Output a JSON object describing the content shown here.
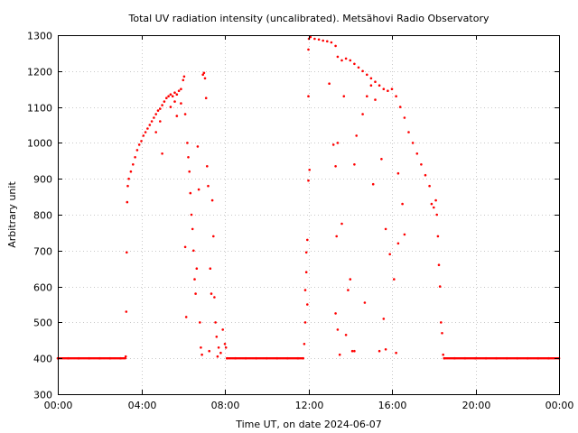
{
  "chart_data": {
    "type": "scatter",
    "title": "Total UV radiation intensity (uncalibrated). Metsähovi Radio Observatory",
    "xlabel": "Time UT, on date 2024-06-07",
    "ylabel": "Arbitrary unit",
    "xlim": [
      0,
      24
    ],
    "ylim": [
      300,
      1300
    ],
    "x_ticks": [
      {
        "value": 0,
        "label": "00:00"
      },
      {
        "value": 4,
        "label": "04:00"
      },
      {
        "value": 8,
        "label": "08:00"
      },
      {
        "value": 12,
        "label": "12:00"
      },
      {
        "value": 16,
        "label": "16:00"
      },
      {
        "value": 20,
        "label": "20:00"
      },
      {
        "value": 24,
        "label": "00:00"
      }
    ],
    "y_ticks": [
      300,
      400,
      500,
      600,
      700,
      800,
      900,
      1000,
      1100,
      1200,
      1300
    ],
    "grid": true,
    "marker_color": "#ff0000",
    "series": [
      {
        "points": [
          [
            0.0,
            400
          ],
          [
            0.5,
            400
          ],
          [
            1.0,
            400
          ],
          [
            1.5,
            400
          ],
          [
            2.0,
            400
          ],
          [
            2.5,
            400
          ],
          [
            3.0,
            400
          ],
          [
            3.25,
            405
          ],
          [
            3.28,
            530
          ],
          [
            3.3,
            695
          ],
          [
            3.32,
            835
          ],
          [
            3.35,
            880
          ],
          [
            3.4,
            900
          ],
          [
            3.5,
            920
          ],
          [
            3.6,
            940
          ],
          [
            3.7,
            960
          ],
          [
            3.8,
            980
          ],
          [
            3.9,
            995
          ],
          [
            4.0,
            1005
          ],
          [
            4.1,
            1020
          ],
          [
            4.2,
            1030
          ],
          [
            4.3,
            1040
          ],
          [
            4.4,
            1050
          ],
          [
            4.5,
            1060
          ],
          [
            4.6,
            1070
          ],
          [
            4.7,
            1080
          ],
          [
            4.8,
            1090
          ],
          [
            4.9,
            1095
          ],
          [
            5.0,
            1105
          ],
          [
            5.1,
            1115
          ],
          [
            5.2,
            1125
          ],
          [
            5.3,
            1130
          ],
          [
            5.4,
            1135
          ],
          [
            5.5,
            1130
          ],
          [
            5.6,
            1140
          ],
          [
            5.7,
            1135
          ],
          [
            5.8,
            1145
          ],
          [
            5.9,
            1150
          ],
          [
            6.0,
            1175
          ],
          [
            6.05,
            1185
          ],
          [
            4.7,
            1030
          ],
          [
            4.9,
            1060
          ],
          [
            5.0,
            970
          ],
          [
            5.4,
            1100
          ],
          [
            5.6,
            1115
          ],
          [
            5.7,
            1075
          ],
          [
            5.9,
            1110
          ],
          [
            6.1,
            1080
          ],
          [
            6.2,
            1000
          ],
          [
            6.25,
            960
          ],
          [
            6.3,
            920
          ],
          [
            6.35,
            860
          ],
          [
            6.4,
            800
          ],
          [
            6.45,
            760
          ],
          [
            6.5,
            700
          ],
          [
            6.55,
            620
          ],
          [
            6.6,
            580
          ],
          [
            6.65,
            650
          ],
          [
            6.7,
            990
          ],
          [
            6.75,
            870
          ],
          [
            6.8,
            500
          ],
          [
            6.85,
            430
          ],
          [
            6.9,
            410
          ],
          [
            6.95,
            1190
          ],
          [
            7.0,
            1195
          ],
          [
            7.05,
            1180
          ],
          [
            7.1,
            1125
          ],
          [
            7.15,
            935
          ],
          [
            7.2,
            880
          ],
          [
            7.3,
            650
          ],
          [
            7.35,
            580
          ],
          [
            7.4,
            840
          ],
          [
            7.45,
            740
          ],
          [
            7.5,
            570
          ],
          [
            7.55,
            500
          ],
          [
            7.6,
            460
          ],
          [
            7.7,
            430
          ],
          [
            7.8,
            415
          ],
          [
            7.9,
            480
          ],
          [
            8.0,
            440
          ],
          [
            8.05,
            430
          ],
          [
            6.1,
            710
          ],
          [
            6.15,
            515
          ],
          [
            7.25,
            420
          ],
          [
            7.65,
            405
          ],
          [
            8.1,
            400
          ],
          [
            8.5,
            400
          ],
          [
            9.0,
            400
          ],
          [
            9.5,
            400
          ],
          [
            10.0,
            400
          ],
          [
            10.5,
            400
          ],
          [
            11.0,
            400
          ],
          [
            11.5,
            400
          ],
          [
            11.75,
            400
          ],
          [
            11.8,
            440
          ],
          [
            11.85,
            590
          ],
          [
            11.9,
            695
          ],
          [
            11.95,
            730
          ],
          [
            12.0,
            1260
          ],
          [
            12.02,
            1290
          ],
          [
            12.1,
            1295
          ],
          [
            12.3,
            1290
          ],
          [
            12.5,
            1288
          ],
          [
            12.7,
            1285
          ],
          [
            12.9,
            1283
          ],
          [
            13.1,
            1280
          ],
          [
            13.3,
            1270
          ],
          [
            11.95,
            550
          ],
          [
            12.0,
            1130
          ],
          [
            12.05,
            925
          ],
          [
            12.0,
            895
          ],
          [
            11.9,
            640
          ],
          [
            11.85,
            500
          ],
          [
            13.0,
            1165
          ],
          [
            13.2,
            995
          ],
          [
            13.3,
            935
          ],
          [
            13.4,
            1000
          ],
          [
            13.5,
            410
          ],
          [
            13.6,
            775
          ],
          [
            13.7,
            1130
          ],
          [
            13.3,
            525
          ],
          [
            13.35,
            740
          ],
          [
            13.4,
            480
          ],
          [
            13.8,
            465
          ],
          [
            13.9,
            590
          ],
          [
            14.0,
            620
          ],
          [
            14.1,
            420
          ],
          [
            13.4,
            1240
          ],
          [
            13.6,
            1230
          ],
          [
            13.8,
            1235
          ],
          [
            14.0,
            1230
          ],
          [
            14.2,
            1220
          ],
          [
            14.4,
            1210
          ],
          [
            14.6,
            1200
          ],
          [
            14.8,
            1190
          ],
          [
            15.0,
            1180
          ],
          [
            15.2,
            1170
          ],
          [
            15.4,
            1160
          ],
          [
            15.6,
            1150
          ],
          [
            15.8,
            1145
          ],
          [
            16.0,
            1150
          ],
          [
            16.2,
            1130
          ],
          [
            16.4,
            1100
          ],
          [
            16.6,
            1070
          ],
          [
            16.8,
            1030
          ],
          [
            17.0,
            1000
          ],
          [
            17.2,
            970
          ],
          [
            17.4,
            940
          ],
          [
            17.6,
            910
          ],
          [
            17.8,
            880
          ],
          [
            17.9,
            830
          ],
          [
            18.0,
            820
          ],
          [
            18.1,
            840
          ],
          [
            18.15,
            800
          ],
          [
            14.3,
            1020
          ],
          [
            14.6,
            1080
          ],
          [
            15.0,
            1160
          ],
          [
            15.2,
            1120
          ],
          [
            14.2,
            940
          ],
          [
            14.8,
            1130
          ],
          [
            15.1,
            885
          ],
          [
            15.5,
            955
          ],
          [
            15.7,
            760
          ],
          [
            15.9,
            690
          ],
          [
            16.1,
            620
          ],
          [
            16.2,
            415
          ],
          [
            16.3,
            915
          ],
          [
            16.5,
            830
          ],
          [
            16.3,
            720
          ],
          [
            16.6,
            745
          ],
          [
            14.7,
            555
          ],
          [
            14.2,
            420
          ],
          [
            15.4,
            420
          ],
          [
            15.6,
            510
          ],
          [
            15.7,
            425
          ],
          [
            18.2,
            740
          ],
          [
            18.25,
            660
          ],
          [
            18.3,
            600
          ],
          [
            18.35,
            500
          ],
          [
            18.4,
            470
          ],
          [
            18.45,
            410
          ],
          [
            18.5,
            400
          ],
          [
            19.0,
            400
          ],
          [
            19.5,
            400
          ],
          [
            20.0,
            400
          ],
          [
            20.5,
            400
          ],
          [
            21.0,
            400
          ],
          [
            21.5,
            400
          ],
          [
            22.0,
            400
          ],
          [
            22.5,
            400
          ],
          [
            23.0,
            400
          ],
          [
            23.5,
            400
          ],
          [
            24.0,
            400
          ]
        ]
      }
    ]
  }
}
